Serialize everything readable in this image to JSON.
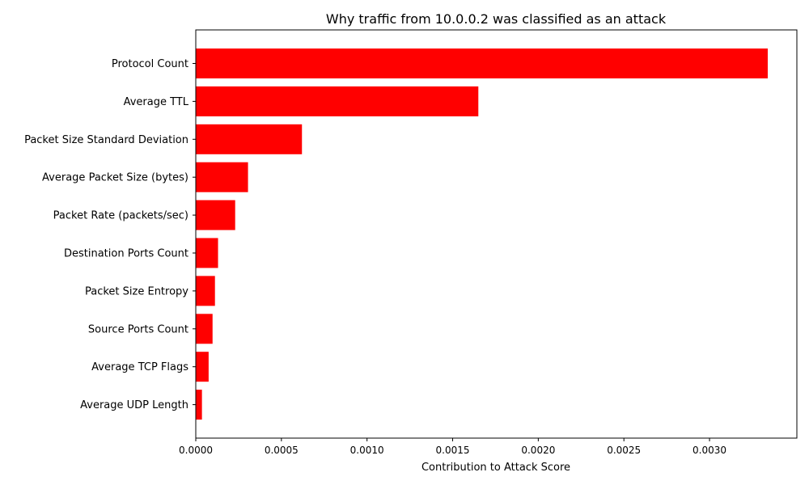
{
  "chart_data": {
    "type": "bar",
    "orientation": "horizontal",
    "title": "Why traffic from 10.0.0.2 was classified as an attack",
    "xlabel": "Contribution to Attack Score",
    "ylabel": "",
    "bar_color": "#ff0000",
    "xlim": [
      0,
      0.00351
    ],
    "x_ticks": [
      "0.0000",
      "0.0005",
      "0.0010",
      "0.0015",
      "0.0020",
      "0.0025",
      "0.0030"
    ],
    "categories": [
      "Protocol Count",
      "Average TTL",
      "Packet Size Standard Deviation",
      "Average Packet Size (bytes)",
      "Packet Rate (packets/sec)",
      "Destination Ports Count",
      "Packet Size Entropy",
      "Source Ports Count",
      "Average TCP Flags",
      "Average UDP Length"
    ],
    "values": [
      0.00334,
      0.00165,
      0.00062,
      0.000305,
      0.00023,
      0.00013,
      0.000112,
      9.8e-05,
      7.5e-05,
      3.6e-05
    ],
    "grid": false,
    "legend": "none"
  }
}
